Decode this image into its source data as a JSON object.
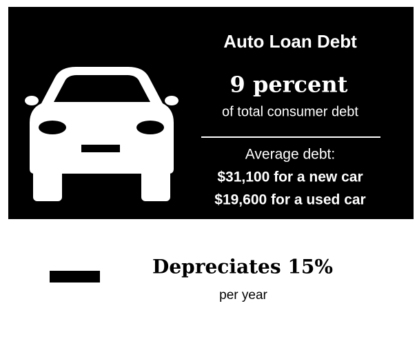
{
  "header": {
    "title": "Auto Loan Debt"
  },
  "stat": {
    "value": "9 percent",
    "caption": "of total consumer debt"
  },
  "average": {
    "label": "Average debt:",
    "lines": [
      "$31,100 for a new car",
      "$19,600 for a used car"
    ]
  },
  "depreciation": {
    "title": "Depreciates 15%",
    "caption": "per year"
  }
}
